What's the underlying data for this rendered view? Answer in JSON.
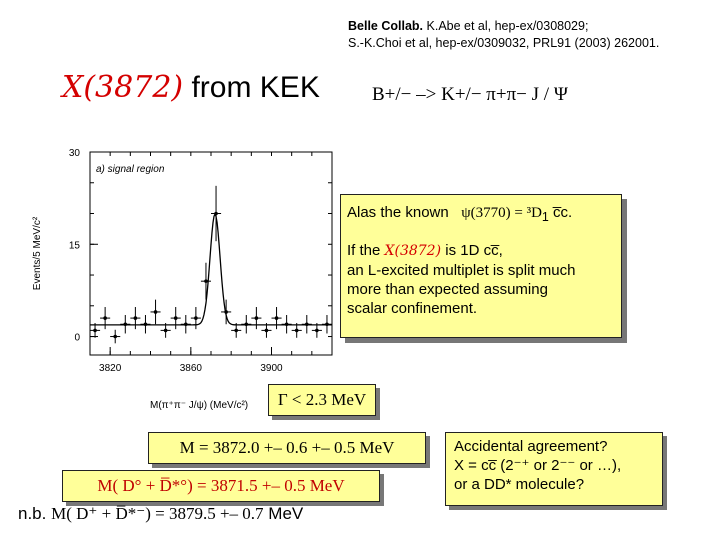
{
  "reference": {
    "line1_bold": "Belle Collab.",
    "line1_rest": " K.Abe et al, hep-ex/0308029;",
    "line2": "S.-K.Choi et al, hep-ex/0309032, PRL91 (2003) 262001."
  },
  "title": {
    "particle": "X(3872)",
    "rest": " from KEK"
  },
  "decay": "B+/− –> K+/− π+π− J / Ψ",
  "info_box": {
    "line1_a": "Alas the known",
    "line1_b": "ψ(3770) = ³D",
    "line1_sub": "1",
    "line1_c": "c̅c.",
    "line2_a": "If the ",
    "line2_particle": "X(3872)",
    "line2_b": " is 1D cc̅,",
    "line3": "an L-excited multiplet is split much",
    "line4": "more than expected assuming",
    "line5": "scalar confinement."
  },
  "width_label": "Γ < 2.3 MeV",
  "mass_line": "M = 3872.0 +– 0.6 +– 0.5 MeV",
  "mass_d0": "M( D° + D̅*°) = 3871.5 +– 0.5 MeV",
  "nb_prefix": "n.b.",
  "nb_mass": "M( D⁺ + D̅*⁻) = 3879.5 +– 0.7",
  "nb_unit": "MeV",
  "accidental": {
    "line1": "Accidental agreement?",
    "line2": "X = cc̅  (2⁻⁺ or 2⁻⁻ or …),",
    "line3": "or a DD* molecule?"
  },
  "chart_data": {
    "type": "scatter",
    "panel_label": "a) signal region",
    "xlabel": "M(π⁺π⁻ J/ψ)  (MeV/c²)",
    "ylabel": "Events/5 MeV/c²",
    "xlim": [
      3810,
      3930
    ],
    "ylim": [
      -3,
      30
    ],
    "x_ticks": [
      3820,
      3860,
      3900
    ],
    "y_ticks": [
      0,
      15,
      30
    ],
    "points_x": [
      3812.5,
      3817.5,
      3822.5,
      3827.5,
      3832.5,
      3837.5,
      3842.5,
      3847.5,
      3852.5,
      3857.5,
      3862.5,
      3867.5,
      3872.5,
      3877.5,
      3882.5,
      3887.5,
      3892.5,
      3897.5,
      3902.5,
      3907.5,
      3912.5,
      3917.5,
      3922.5,
      3927.5
    ],
    "points_y": [
      1,
      3,
      0,
      2,
      3,
      2,
      4,
      1,
      3,
      2,
      3,
      9,
      20,
      4,
      1,
      2,
      3,
      1,
      3,
      2,
      1,
      2,
      1,
      2
    ],
    "errors": [
      1.2,
      1.8,
      1.1,
      1.5,
      1.8,
      1.5,
      2.0,
      1.2,
      1.8,
      1.5,
      1.8,
      3.0,
      4.5,
      2.0,
      1.2,
      1.5,
      1.8,
      1.2,
      1.8,
      1.5,
      1.2,
      1.5,
      1.2,
      1.5
    ],
    "fit": {
      "background": 1.9,
      "peak_mean": 3872.0,
      "peak_sigma": 2.5,
      "peak_amplitude": 18
    }
  }
}
